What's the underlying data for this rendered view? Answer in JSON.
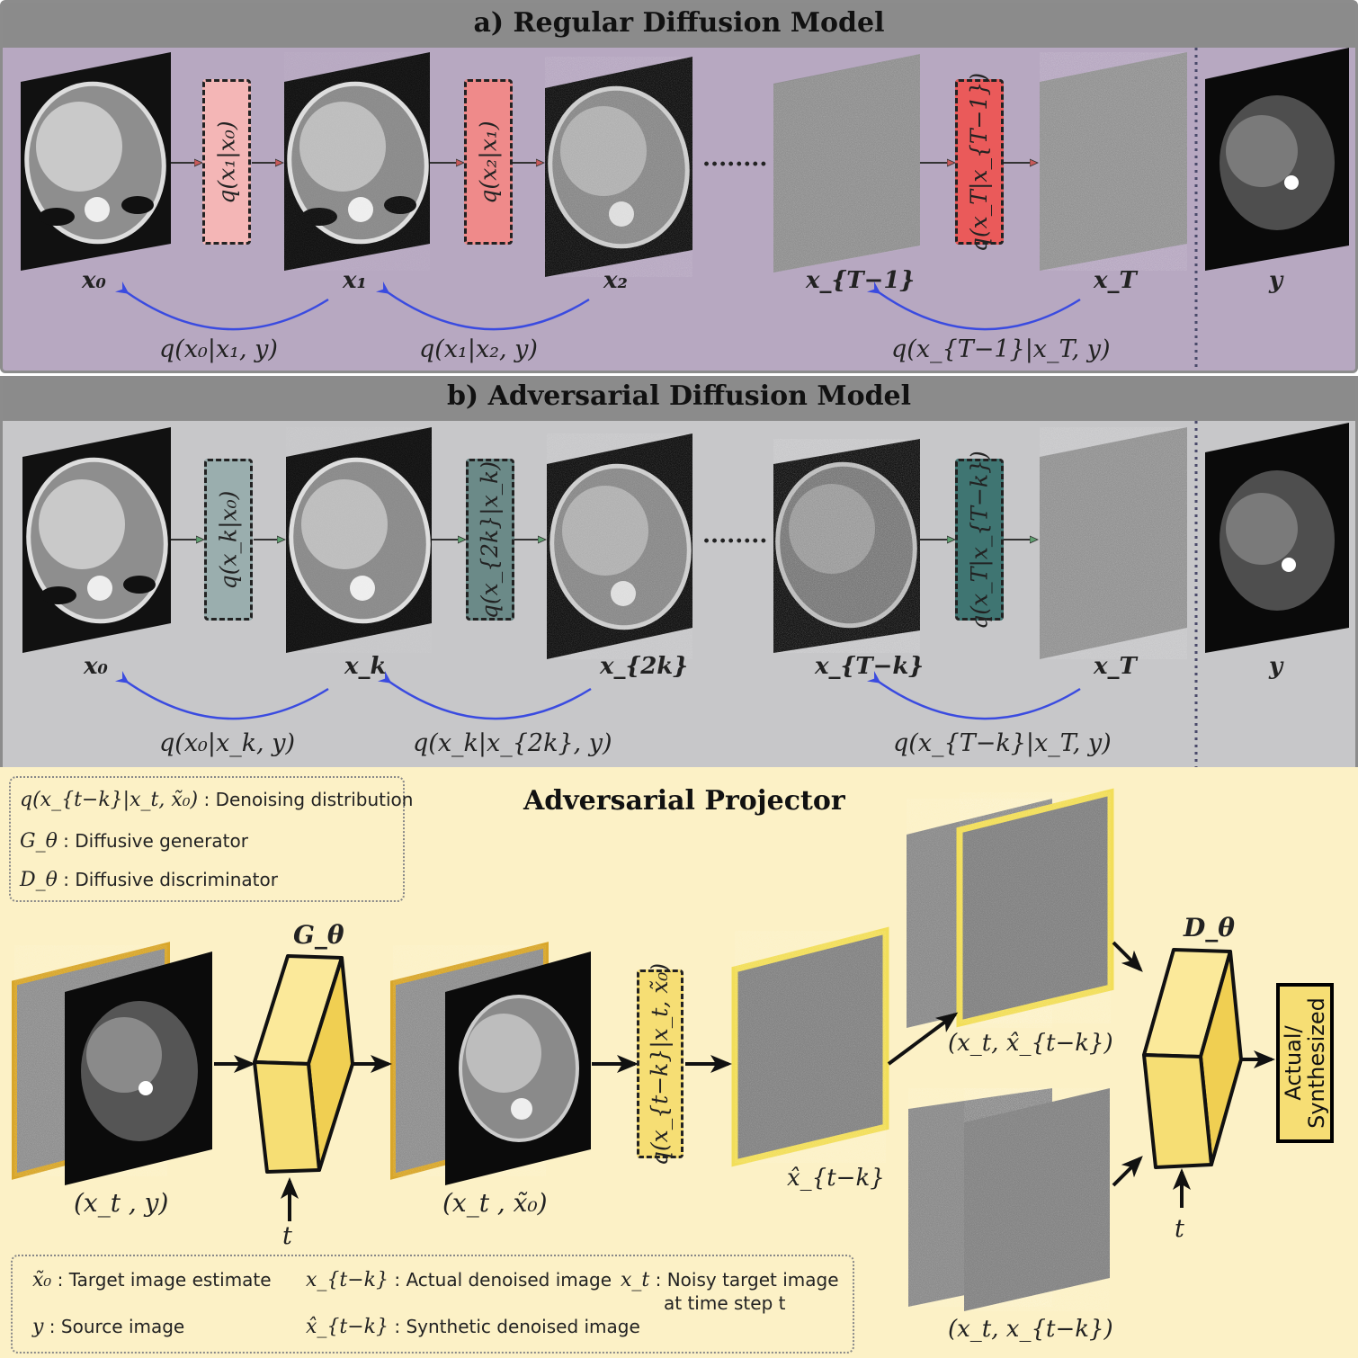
{
  "panel_a": {
    "title": "a) Regular Diffusion Model",
    "nodes": [
      "x₀",
      "x₁",
      "x₂",
      "x_{T−1}",
      "x_T",
      "y"
    ],
    "forward": [
      "q(x₁|x₀)",
      "q(x₂|x₁)",
      "q(x_T|x_{T−1})"
    ],
    "reverse": [
      "q(x₀|x₁, y)",
      "q(x₁|x₂, y)",
      "q(x_{T−1}|x_T, y)"
    ],
    "ellipsis": "........"
  },
  "panel_b": {
    "title": "b) Adversarial Diffusion Model",
    "nodes": [
      "x₀",
      "x_k",
      "x_{2k}",
      "x_{T−k}",
      "x_T",
      "y"
    ],
    "forward": [
      "q(x_k|x₀)",
      "q(x_{2k}|x_k)",
      "q(x_T|x_{T−k})"
    ],
    "reverse": [
      "q(x₀|x_k, y)",
      "q(x_k|x_{2k}, y)",
      "q(x_{T−k}|x_T, y)"
    ],
    "ellipsis": "........"
  },
  "panel_c": {
    "title": "Adversarial Projector",
    "legend_top": [
      {
        "sym": "q(x_{t−k}|x_t, x̃₀)",
        "desc": " : Denoising distribution"
      },
      {
        "sym": "G_θ",
        "desc": " : Diffusive generator"
      },
      {
        "sym": "D_θ",
        "desc": " : Diffusive discriminator"
      }
    ],
    "generator": "G_θ",
    "discriminator": "D_θ",
    "time": "t",
    "input_label": "(x_t , y)",
    "gen_output_label": "(x_t , x̃₀)",
    "denoise_box": "q(x_{t−k}|x_t, x̃₀)",
    "estimate_label": "x̂_{t−k}",
    "pair_fake": "(x_t, x̂_{t−k})",
    "pair_real": "(x_t, x_{t−k})",
    "output_line1": "Actual/",
    "output_line2": "Synthesized",
    "legend_bottom": [
      {
        "sym": "x̃₀",
        "desc": " : Target image estimate"
      },
      {
        "sym": "x_{t−k}",
        "desc": " : Actual denoised image"
      },
      {
        "sym": "x_t",
        "desc": " : Noisy target image"
      },
      {
        "sym": "",
        "desc": "at time step t"
      },
      {
        "sym": "y",
        "desc": " : Source image"
      },
      {
        "sym": "x̂_{t−k}",
        "desc": " : Synthetic denoised image"
      }
    ]
  },
  "colors": {
    "panel_a_bg": "#b7a8c1",
    "panel_b_bg": "#c7c7c9",
    "panel_c_bg": "#fcf1c6",
    "header_bg": "#8b8b8b",
    "reverse_arrow": "#3a4be0",
    "box_a": [
      "#f4b6b6",
      "#ef8a8a",
      "#ea5a5a"
    ],
    "box_b": [
      "#9aaeae",
      "#6b8a88",
      "#3f7572"
    ],
    "gold": "#f6de74",
    "gold_border": "#d8a62a"
  }
}
